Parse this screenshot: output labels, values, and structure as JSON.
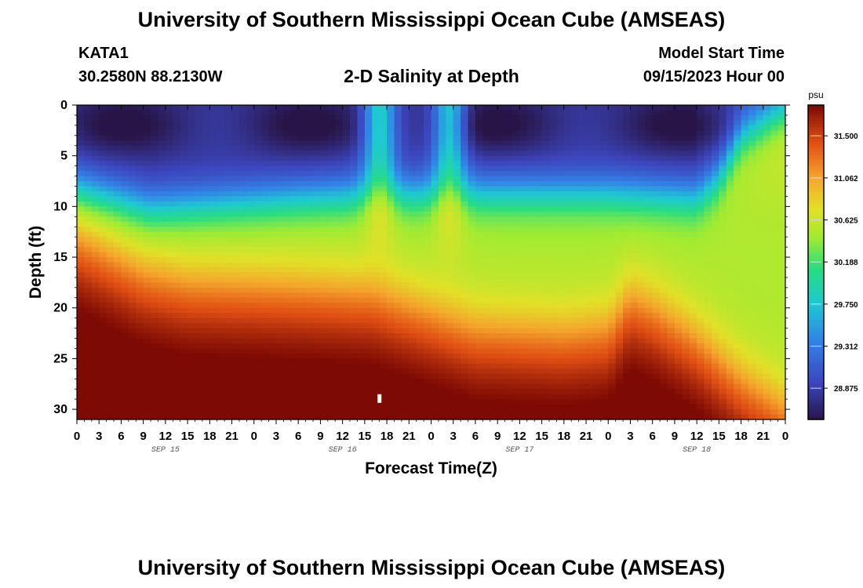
{
  "page": {
    "title": "University of Southern Mississippi Ocean Cube (AMSEAS)",
    "station": "KATA1",
    "coords": "30.2580N  88.2130W",
    "subtitle": "2-D Salinity at Depth",
    "model_start_label": "Model Start Time",
    "model_start_value": "09/15/2023 Hour 00",
    "footer_title": "University of Southern Mississippi Ocean Cube (AMSEAS)"
  },
  "chart_data": {
    "type": "heatmap",
    "title": "2-D Salinity at Depth",
    "xlabel": "Forecast Time(Z)",
    "ylabel": "Depth (ft)",
    "xlim": [
      0,
      96
    ],
    "ylim": [
      31,
      0
    ],
    "x_ticks": [
      0,
      3,
      6,
      9,
      12,
      15,
      18,
      21,
      24,
      27,
      30,
      33,
      36,
      39,
      42,
      45,
      48,
      51,
      54,
      57,
      60,
      63,
      66,
      69,
      72,
      75,
      78,
      81,
      84,
      87,
      90,
      93,
      96
    ],
    "x_tick_labels": [
      "0",
      "3",
      "6",
      "9",
      "12",
      "15",
      "18",
      "21",
      "0",
      "3",
      "6",
      "9",
      "12",
      "15",
      "18",
      "21",
      "0",
      "3",
      "6",
      "9",
      "12",
      "15",
      "18",
      "21",
      "0",
      "3",
      "6",
      "9",
      "12",
      "15",
      "18",
      "21",
      "0"
    ],
    "date_labels": [
      {
        "label": "SEP 15",
        "hour": 12
      },
      {
        "label": "SEP 16",
        "hour": 36
      },
      {
        "label": "SEP 17",
        "hour": 60
      },
      {
        "label": "SEP 18",
        "hour": 84
      }
    ],
    "y_ticks": [
      0,
      5,
      10,
      15,
      20,
      25,
      30
    ],
    "colorbar": {
      "unit": "psu",
      "min": 28.55,
      "max": 31.82,
      "ticks": [
        31.5,
        31.062,
        30.625,
        30.188,
        29.75,
        29.312,
        28.875
      ],
      "tick_labels": [
        "31.500",
        "31.062",
        "30.625",
        "30.188",
        "29.750",
        "29.312",
        "28.875"
      ]
    },
    "halocline_depth_ft": [
      {
        "hour": 0,
        "depth": 13
      },
      {
        "hour": 9,
        "depth": 16.5
      },
      {
        "hour": 15,
        "depth": 17.5
      },
      {
        "hour": 30,
        "depth": 18
      },
      {
        "hour": 40,
        "depth": 18.5
      },
      {
        "hour": 48,
        "depth": 20.5
      },
      {
        "hour": 54,
        "depth": 22
      },
      {
        "hour": 66,
        "depth": 22.5
      },
      {
        "hour": 72,
        "depth": 22
      },
      {
        "hour": 75,
        "depth": 19
      },
      {
        "hour": 78,
        "depth": 20
      },
      {
        "hour": 84,
        "depth": 23
      },
      {
        "hour": 90,
        "depth": 27
      },
      {
        "hour": 96,
        "depth": 30
      }
    ],
    "fresh_layer_depth_ft": [
      {
        "hour": 0,
        "depth": 8
      },
      {
        "hour": 10,
        "depth": 10
      },
      {
        "hour": 30,
        "depth": 9
      },
      {
        "hour": 42,
        "depth": 8.5
      },
      {
        "hour": 56,
        "depth": 8.5
      },
      {
        "hour": 72,
        "depth": 8.5
      },
      {
        "hour": 84,
        "depth": 9
      },
      {
        "hour": 87,
        "depth": 7
      },
      {
        "hour": 90,
        "depth": 3
      },
      {
        "hour": 96,
        "depth": 0.5
      }
    ],
    "intrusions": [
      {
        "hour": 41,
        "depth_top": 0.5,
        "width_h": 2.2
      },
      {
        "hour": 50.5,
        "depth_top": 1.5,
        "width_h": 2.2
      }
    ],
    "marker": {
      "hour": 41,
      "depth": 28.9
    }
  }
}
